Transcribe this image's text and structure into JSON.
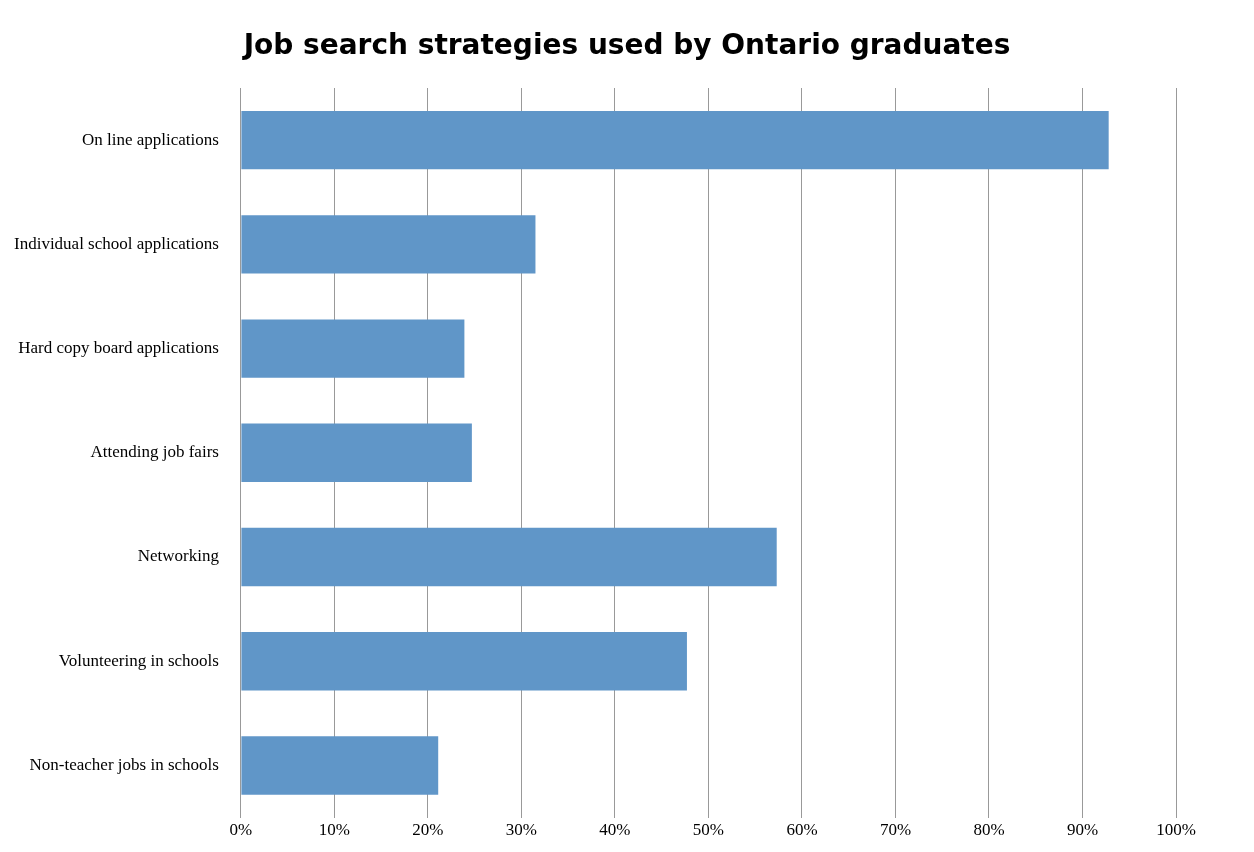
{
  "chart_data": {
    "type": "bar",
    "orientation": "horizontal",
    "title": "Job search strategies used by Ontario graduates",
    "categories": [
      "On line applications",
      "Individual school applications",
      "Hard copy board applications",
      "Attending job fairs",
      "Networking",
      "Volunteering in schools",
      "Non-teacher jobs in schools"
    ],
    "values": [
      92.8,
      31.5,
      23.9,
      24.7,
      57.3,
      47.7,
      21.1
    ],
    "color": "#6096c8",
    "xlim": [
      0,
      100
    ],
    "xticks": [
      {
        "value": 0,
        "label": "0%"
      },
      {
        "value": 10,
        "label": "10%"
      },
      {
        "value": 20,
        "label": "20%"
      },
      {
        "value": 30,
        "label": "30%"
      },
      {
        "value": 40,
        "label": "40%"
      },
      {
        "value": 50,
        "label": "50%"
      },
      {
        "value": 60,
        "label": "60%"
      },
      {
        "value": 70,
        "label": "70%"
      },
      {
        "value": 80,
        "label": "80%"
      },
      {
        "value": 90,
        "label": "90%"
      },
      {
        "value": 100,
        "label": "100%"
      }
    ],
    "grid": "x",
    "legend": false
  }
}
